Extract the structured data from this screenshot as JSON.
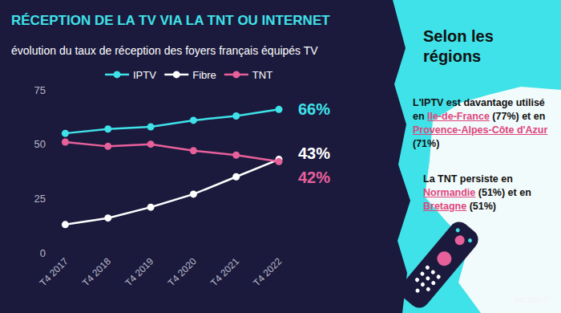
{
  "chart_data": {
    "type": "line",
    "title": "RÉCEPTION DE LA TV VIA LA TNT OU INTERNET",
    "subtitle": "évolution du taux de réception des foyers français équipés TV",
    "categories": [
      "T4 2017",
      "T4 2018",
      "T4 2019",
      "T4 2020",
      "T4 2021",
      "T4 2022"
    ],
    "series": [
      {
        "name": "IPTV",
        "color": "#3fe2e8",
        "marker": "circle",
        "line_style": "solid",
        "values": [
          55,
          57,
          58,
          61,
          63,
          66
        ]
      },
      {
        "name": "Fibre",
        "color": "#ffffff",
        "marker": "circle",
        "line_style": "solid",
        "values": [
          13,
          16,
          21,
          27,
          35,
          43
        ]
      },
      {
        "name": "TNT",
        "color": "#e8609a",
        "marker": "circle",
        "line_style": "solid",
        "values": [
          51,
          49,
          50,
          47,
          45,
          42
        ]
      }
    ],
    "ylim": [
      0,
      75
    ],
    "yticks": [
      0,
      25,
      50,
      75
    ],
    "grid": false,
    "legend": "top",
    "annotations": [
      {
        "series": "IPTV",
        "text": "66%"
      },
      {
        "series": "Fibre",
        "text": "43%"
      },
      {
        "series": "TNT",
        "text": "42%"
      }
    ]
  },
  "side_panel": {
    "title": "Selon les régions",
    "notes": [
      [
        {
          "text": "L'IPTV est davantage utilisé en "
        },
        {
          "text": "Ile-de-France",
          "color": "#e0457b"
        },
        {
          "text": " (77%) et en "
        },
        {
          "text": "Provence-Alpes-Côte d'Azur",
          "color": "#e0457b"
        },
        {
          "text": " (71%)"
        }
      ],
      [
        {
          "text": "La TNT persiste en "
        },
        {
          "text": "Normandie",
          "color": "#e0457b"
        },
        {
          "text": " (51%) et en "
        },
        {
          "text": "Bretagne",
          "color": "#e0457b"
        },
        {
          "text": " (51%)"
        }
      ]
    ],
    "source": "arcom.fr"
  }
}
